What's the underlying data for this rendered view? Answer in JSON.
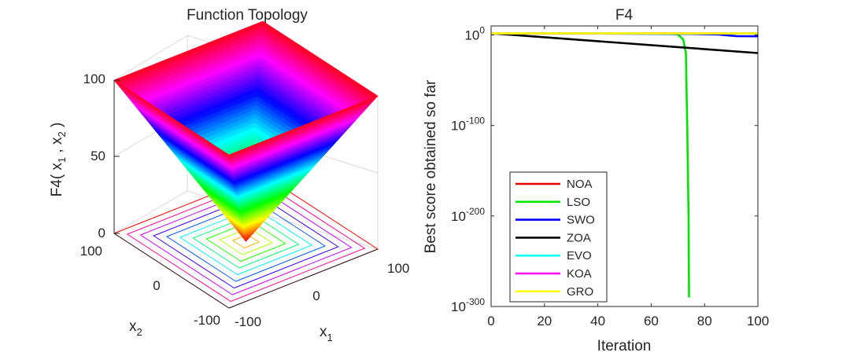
{
  "chart_data": [
    {
      "type": "surface",
      "title": "Function Topology",
      "function": "F4",
      "zlabel": "F4( x1 , x2 )",
      "xlabel": "x1",
      "ylabel": "x2",
      "x_range": [
        -100,
        100
      ],
      "y_range": [
        -100,
        100
      ],
      "z_range": [
        0,
        100
      ],
      "z_ticks": [
        "0",
        "50",
        "100"
      ],
      "x_ticks": [
        "-100",
        "0",
        "100"
      ],
      "y_ticks": [
        "-100",
        "0",
        "100"
      ],
      "contour_levels": [
        10,
        20,
        30,
        40,
        50,
        60,
        70,
        80,
        90,
        100
      ],
      "colormap": "hsv"
    },
    {
      "type": "line",
      "title": "F4",
      "xlabel": "Iteration",
      "ylabel": "Best score obtained so far",
      "xlim": [
        0,
        100
      ],
      "ylim_log10": [
        -300,
        10
      ],
      "yscale": "log",
      "x_ticks": [
        "0",
        "20",
        "40",
        "60",
        "80",
        "100"
      ],
      "y_ticks": [
        {
          "base": "10",
          "exp": "0",
          "log10": 0
        },
        {
          "base": "10",
          "exp": "-100",
          "log10": -100
        },
        {
          "base": "10",
          "exp": "-200",
          "log10": -200
        },
        {
          "base": "10",
          "exp": "-300",
          "log10": -300
        }
      ],
      "legend_position": "bottom-left",
      "series": [
        {
          "name": "NOA",
          "color": "#e60000",
          "points": [
            [
              0,
              1.8
            ],
            [
              100,
              1.7
            ]
          ]
        },
        {
          "name": "LSO",
          "color": "#00e600",
          "points": [
            [
              0,
              1.8
            ],
            [
              50,
              1.6
            ],
            [
              65,
              1.4
            ],
            [
              70,
              0.8
            ],
            [
              72,
              -5
            ],
            [
              73,
              -20
            ],
            [
              73.5,
              -100
            ],
            [
              74,
              -200
            ],
            [
              74.2,
              -290
            ]
          ]
        },
        {
          "name": "SWO",
          "color": "#0000ff",
          "points": [
            [
              0,
              1.8
            ],
            [
              60,
              1.4
            ],
            [
              75,
              1.2
            ],
            [
              85,
              0.6
            ],
            [
              92,
              -1.3
            ],
            [
              100,
              -1.5
            ]
          ]
        },
        {
          "name": "ZOA",
          "color": "#000000",
          "points": [
            [
              0,
              1.8
            ],
            [
              100,
              -20
            ]
          ]
        },
        {
          "name": "EVO",
          "color": "#00ffff",
          "points": [
            [
              0,
              1.8
            ],
            [
              100,
              1.6
            ]
          ]
        },
        {
          "name": "KOA",
          "color": "#ff00ff",
          "points": [
            [
              0,
              1.8
            ],
            [
              100,
              1.8
            ]
          ]
        },
        {
          "name": "GRO",
          "color": "#ffff00",
          "points": [
            [
              0,
              1.8
            ],
            [
              100,
              1.8
            ]
          ]
        }
      ]
    }
  ]
}
